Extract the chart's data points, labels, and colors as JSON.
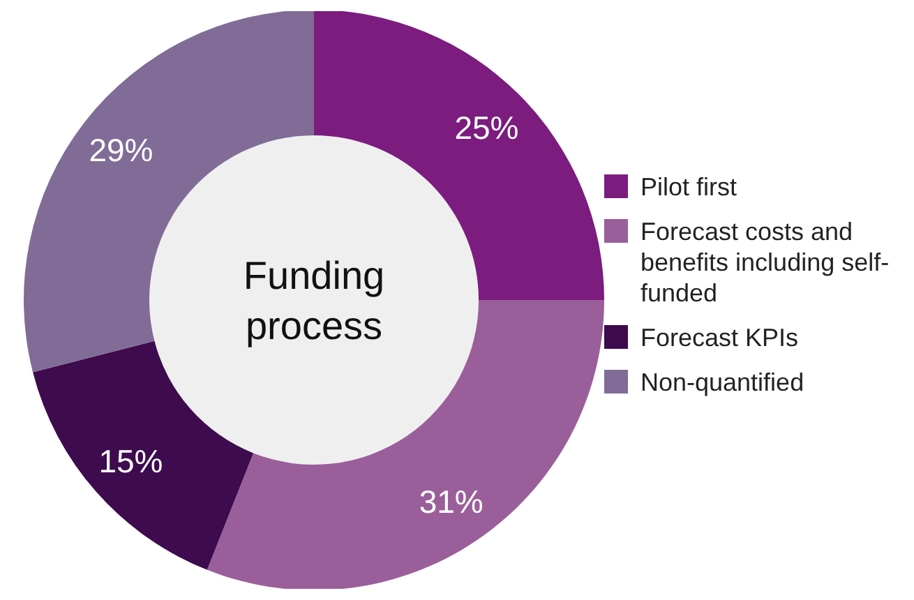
{
  "chart_data": {
    "type": "donut",
    "title": "Funding process",
    "categories": [
      "Pilot first",
      "Forecast costs and benefits including self-funded",
      "Forecast KPIs",
      "Non-quantified"
    ],
    "values": [
      25,
      31,
      15,
      29
    ],
    "value_labels": [
      "25%",
      "31%",
      "15%",
      "29%"
    ],
    "colors": [
      "#7b1c7e",
      "#9a5f9b",
      "#3e0b4e",
      "#806c97"
    ],
    "legend": "right"
  }
}
